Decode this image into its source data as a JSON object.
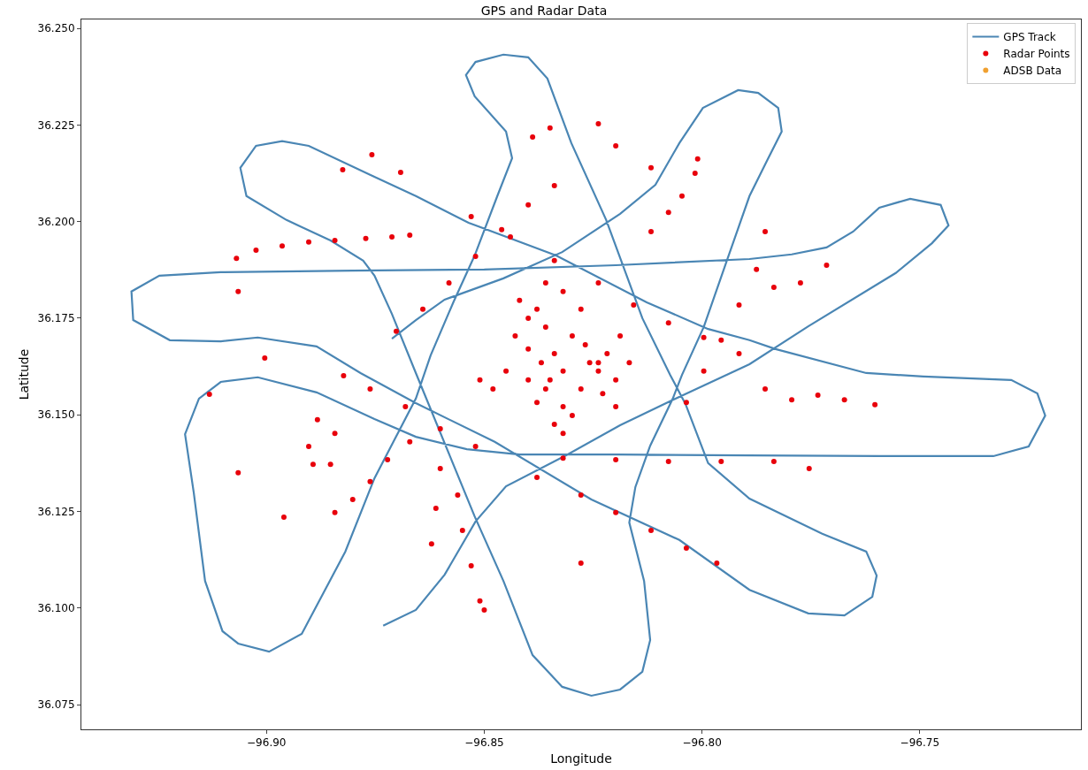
{
  "chart_data": {
    "type": "scatter",
    "title": "GPS and Radar Data",
    "xlabel": "Longitude",
    "ylabel": "Latitude",
    "xlim": [
      -96.9425,
      -96.713
    ],
    "ylim": [
      36.0686,
      36.2523
    ],
    "xticks": [
      {
        "value": -96.9,
        "label": "−96.90"
      },
      {
        "value": -96.85,
        "label": "−96.85"
      },
      {
        "value": -96.8,
        "label": "−96.80"
      },
      {
        "value": -96.75,
        "label": "−96.75"
      }
    ],
    "yticks": [
      {
        "value": 36.075,
        "label": "36.075"
      },
      {
        "value": 36.1,
        "label": "36.100"
      },
      {
        "value": 36.125,
        "label": "36.125"
      },
      {
        "value": 36.15,
        "label": "36.150"
      },
      {
        "value": 36.175,
        "label": "36.175"
      },
      {
        "value": 36.2,
        "label": "36.200"
      },
      {
        "value": 36.225,
        "label": "36.225"
      },
      {
        "value": 36.25,
        "label": "36.250"
      }
    ],
    "grid": false,
    "legend": "top right",
    "series": [
      {
        "name": "GPS Track",
        "type": "line",
        "line_style": "solid",
        "marker": "none",
        "color": "#4a86b4",
        "x": [
          -96.8732,
          -96.8657,
          -96.8591,
          -96.852,
          -96.845,
          -96.8309,
          -96.8188,
          -96.8036,
          -96.7891,
          -96.7756,
          -96.7555,
          -96.7472,
          -96.7434,
          -96.7452,
          -96.7522,
          -96.7593,
          -96.7653,
          -96.7714,
          -96.7794,
          -96.7891,
          -96.8198,
          -96.85,
          -96.8802,
          -96.9105,
          -96.9246,
          -96.931,
          -96.9306,
          -96.9222,
          -96.9105,
          -96.902,
          -96.8885,
          -96.8784,
          -96.8657,
          -96.8476,
          -96.8254,
          -96.8052,
          -96.7891,
          -96.7756,
          -96.7673,
          -96.7609,
          -96.7599,
          -96.7623,
          -96.7724,
          -96.7891,
          -96.7986,
          -96.8038,
          -96.8073,
          -96.8137,
          -96.822,
          -96.83,
          -96.8355,
          -96.8399,
          -96.8456,
          -96.852,
          -96.8542,
          -96.8522,
          -96.845,
          -96.8436,
          -96.847,
          -96.8522,
          -96.8571,
          -96.8623,
          -96.8657,
          -96.8752,
          -96.8819,
          -96.8919,
          -96.8994,
          -96.9065,
          -96.9101,
          -96.9141,
          -96.9167,
          -96.9187,
          -96.9155,
          -96.9105,
          -96.902,
          -96.8885,
          -96.8752,
          -96.8657,
          -96.854,
          -96.8419,
          -96.8198,
          -96.7895,
          -96.7593,
          -96.7331,
          -96.725,
          -96.7212,
          -96.723,
          -96.729,
          -96.7492,
          -96.7623,
          -96.7831,
          -96.7891,
          -96.7986,
          -96.8127,
          -96.8335,
          -96.8536,
          -96.8657,
          -96.8762,
          -96.8903,
          -96.8964,
          -96.9024,
          -96.906,
          -96.9046,
          -96.8954,
          -96.8853,
          -96.8778,
          -96.8752,
          -96.8712,
          -96.8657,
          -96.8522,
          -96.8456,
          -96.8389,
          -96.8321,
          -96.8254,
          -96.8188,
          -96.8137,
          -96.8119,
          -96.8133,
          -96.8167,
          -96.8153,
          -96.8119,
          -96.8067,
          -96.8046,
          -96.7996,
          -96.7946,
          -96.7891,
          -96.7851,
          -96.7817,
          -96.7825,
          -96.7871,
          -96.7917,
          -96.7998,
          -96.8052,
          -96.8107,
          -96.8188,
          -96.8321,
          -96.8456,
          -96.8591,
          -96.8657,
          -96.8712
        ],
        "values": [
          36.0954,
          36.0995,
          36.1086,
          36.1224,
          36.1315,
          36.1397,
          36.1473,
          36.1555,
          36.1631,
          36.1729,
          36.1867,
          36.1944,
          36.199,
          36.2043,
          36.2059,
          36.2036,
          36.1974,
          36.1933,
          36.1915,
          36.1903,
          36.1887,
          36.1876,
          36.1873,
          36.1869,
          36.186,
          36.1819,
          36.1745,
          36.1693,
          36.169,
          36.17,
          36.1677,
          36.1608,
          36.153,
          36.143,
          36.1281,
          36.1176,
          36.1047,
          36.0986,
          36.0981,
          36.1029,
          36.1084,
          36.1146,
          36.1192,
          36.1283,
          36.1375,
          36.1528,
          36.1603,
          36.175,
          36.2004,
          36.2203,
          36.237,
          36.2425,
          36.2432,
          36.2413,
          36.2379,
          36.2324,
          36.2233,
          36.2164,
          36.2066,
          36.1912,
          36.1791,
          36.1654,
          36.1542,
          36.1336,
          36.1146,
          36.0933,
          36.0887,
          36.0908,
          36.094,
          36.107,
          36.1299,
          36.145,
          36.1542,
          36.1585,
          36.1597,
          36.1558,
          36.1489,
          36.1443,
          36.1411,
          36.1397,
          36.1397,
          36.1395,
          36.1393,
          36.1393,
          36.1418,
          36.1498,
          36.1555,
          36.159,
          36.1599,
          36.1608,
          36.167,
          36.1693,
          36.1722,
          36.1791,
          36.1912,
          36.1997,
          36.2066,
          36.2121,
          36.2196,
          36.2208,
          36.2196,
          36.2139,
          36.2066,
          36.2004,
          36.1951,
          36.1899,
          36.186,
          36.1761,
          36.1608,
          36.1237,
          36.107,
          36.0878,
          36.0796,
          36.0773,
          36.0789,
          36.0835,
          36.0917,
          36.107,
          36.1221,
          36.1313,
          36.142,
          36.1542,
          36.1603,
          36.1727,
          36.1889,
          36.2066,
          36.2157,
          36.2233,
          36.2294,
          36.2333,
          36.234,
          36.2294,
          36.2203,
          36.2095,
          36.202,
          36.1921,
          36.1853,
          36.1798,
          36.1745,
          36.1697
        ]
      },
      {
        "name": "Radar Points",
        "type": "scatter",
        "marker": "circle",
        "color": "#e8000b",
        "x": [
          -96.8419,
          -96.8399,
          -96.8379,
          -96.8359,
          -96.8429,
          -96.8399,
          -96.8369,
          -96.8339,
          -96.8319,
          -96.8399,
          -96.8359,
          -96.8379,
          -96.8319,
          -96.8339,
          -96.8298,
          -96.8268,
          -96.8258,
          -96.8238,
          -96.8218,
          -96.8198,
          -96.8228,
          -96.8278,
          -96.845,
          -96.848,
          -96.851,
          -96.8198,
          -96.8167,
          -96.8188,
          -96.8278,
          -96.8319,
          -96.8359,
          -96.8298,
          -96.8319,
          -96.8238,
          -96.8349,
          -96.9069,
          -96.9024,
          -96.8964,
          -96.8903,
          -96.8843,
          -96.8772,
          -96.8712,
          -96.8671,
          -96.8702,
          -96.8641,
          -96.8581,
          -96.852,
          -96.846,
          -96.8399,
          -96.8339,
          -96.853,
          -96.844,
          -96.8339,
          -96.8238,
          -96.8157,
          -96.8077,
          -96.7996,
          -96.7915,
          -96.8036,
          -96.7996,
          -96.7956,
          -96.7915,
          -96.7875,
          -96.8117,
          -96.8077,
          -96.8046,
          -96.8016,
          -96.801,
          -96.7855,
          -96.7794,
          -96.7734,
          -96.7673,
          -96.7603,
          -96.8319,
          -96.8198,
          -96.8077,
          -96.7956,
          -96.7835,
          -96.7754,
          -96.8671,
          -96.8722,
          -96.8762,
          -96.8802,
          -96.8843,
          -96.8823,
          -96.8762,
          -96.8681,
          -96.8601,
          -96.852,
          -96.8561,
          -96.855,
          -96.853,
          -96.851,
          -96.85,
          -96.8601,
          -96.8611,
          -96.8621,
          -96.8379,
          -96.8278,
          -96.8198,
          -96.8117,
          -96.8036,
          -96.9131,
          -96.9065,
          -96.896,
          -96.8278,
          -96.7966,
          -96.8238,
          -96.8349,
          -96.8758,
          -96.8825,
          -96.8692,
          -96.8117,
          -96.7855,
          -96.7774,
          -96.7714,
          -96.7835,
          -96.8389,
          -96.8198,
          -96.8903,
          -96.8893,
          -96.8853,
          -96.8883,
          -96.9004,
          -96.9065,
          -96.8843
        ],
        "values": [
          36.1796,
          36.175,
          36.1773,
          36.1727,
          36.1704,
          36.167,
          36.1635,
          36.1658,
          36.1613,
          36.159,
          36.1567,
          36.1532,
          36.1521,
          36.1475,
          36.1704,
          36.1681,
          36.1635,
          36.1613,
          36.1658,
          36.159,
          36.1555,
          36.1567,
          36.1613,
          36.1567,
          36.159,
          36.1521,
          36.1635,
          36.1704,
          36.1773,
          36.1819,
          36.1841,
          36.1498,
          36.1452,
          36.1635,
          36.159,
          36.1905,
          36.1926,
          36.1937,
          36.1947,
          36.1951,
          36.1956,
          36.196,
          36.1965,
          36.1716,
          36.1773,
          36.1841,
          36.191,
          36.1979,
          36.2043,
          36.2093,
          36.2013,
          36.196,
          36.1899,
          36.1841,
          36.1784,
          36.1738,
          36.17,
          36.1658,
          36.1532,
          36.1613,
          36.1693,
          36.1784,
          36.1876,
          36.1974,
          36.2024,
          36.2066,
          36.2125,
          36.2162,
          36.1567,
          36.1539,
          36.1551,
          36.1539,
          36.1526,
          36.1388,
          36.1384,
          36.1379,
          36.1379,
          36.1379,
          36.1361,
          36.143,
          36.1384,
          36.1327,
          36.1281,
          36.1247,
          36.1601,
          36.1567,
          36.1521,
          36.1464,
          36.1418,
          36.1292,
          36.1201,
          36.1109,
          36.1018,
          36.0995,
          36.1361,
          36.1258,
          36.1166,
          36.1338,
          36.1292,
          36.1247,
          36.1201,
          36.1155,
          36.1553,
          36.135,
          36.1235,
          36.1116,
          36.1116,
          36.2253,
          36.2242,
          36.2173,
          36.2134,
          36.2127,
          36.2139,
          36.1974,
          36.1841,
          36.1887,
          36.183,
          36.2219,
          36.2196,
          36.1418,
          36.1372,
          36.1372,
          36.1487,
          36.1647,
          36.1819,
          36.1452
        ]
      },
      {
        "name": "ADSB Data",
        "type": "scatter",
        "marker": "circle",
        "color": "#f0a030"
      }
    ]
  }
}
